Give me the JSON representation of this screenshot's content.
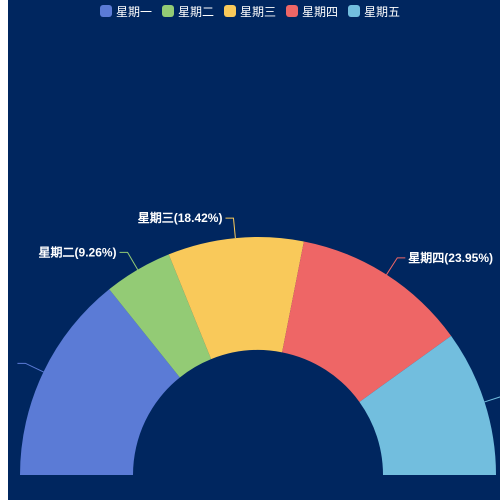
{
  "colors": {
    "background": "#00265f"
  },
  "chart_data": {
    "type": "pie",
    "variant": "half-donut",
    "legend_position": "top",
    "categories": [
      "星期一",
      "星期二",
      "星期三",
      "星期四",
      "星期五"
    ],
    "colors": [
      "#5b7bd6",
      "#93cb75",
      "#f9c95a",
      "#ee6666",
      "#72bede"
    ],
    "values": [
      28.5,
      9.26,
      18.42,
      23.95,
      19.87
    ],
    "labels": [
      "",
      "星期二(9.26%)",
      "星期三(18.42%)",
      "星期四(23.95%)",
      ""
    ]
  }
}
